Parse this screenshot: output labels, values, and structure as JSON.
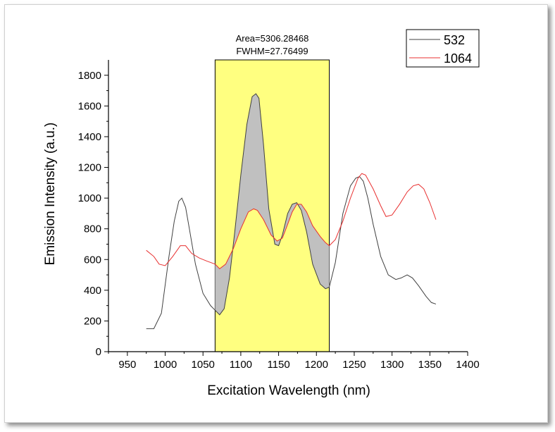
{
  "chart_data": {
    "type": "line",
    "xlabel": "Excitation Wavelength (nm)",
    "ylabel": "Emission Intensity (a.u.)",
    "xlim": [
      925,
      1400
    ],
    "ylim": [
      0,
      1900
    ],
    "xticks": [
      950,
      1000,
      1050,
      1100,
      1150,
      1200,
      1250,
      1300,
      1350,
      1400
    ],
    "yticks": [
      0,
      200,
      400,
      600,
      800,
      1000,
      1200,
      1400,
      1600,
      1800
    ],
    "grid": false,
    "legend_position": "top-right",
    "highlight": {
      "x_range": [
        1066,
        1217
      ],
      "color": "#ffff80",
      "annotation_lines": [
        "Area=5306.28468",
        "FWHM=27.76499"
      ]
    },
    "fill_between_color": "#c0c0c0",
    "series": [
      {
        "name": "532",
        "color": "#404040",
        "x": [
          975,
          985,
          995,
          1005,
          1012,
          1018,
          1022,
          1027,
          1032,
          1040,
          1050,
          1060,
          1066,
          1072,
          1078,
          1085,
          1092,
          1100,
          1108,
          1115,
          1120,
          1124,
          1130,
          1137,
          1145,
          1150,
          1155,
          1162,
          1168,
          1174,
          1180,
          1187,
          1195,
          1205,
          1212,
          1217,
          1225,
          1235,
          1245,
          1252,
          1257,
          1262,
          1268,
          1275,
          1285,
          1295,
          1305,
          1312,
          1320,
          1327,
          1335,
          1345,
          1352,
          1358
        ],
        "y": [
          150,
          150,
          250,
          620,
          850,
          980,
          1000,
          940,
          800,
          570,
          380,
          300,
          270,
          240,
          280,
          480,
          780,
          1150,
          1480,
          1660,
          1680,
          1650,
          1350,
          930,
          700,
          690,
          760,
          900,
          960,
          970,
          920,
          780,
          570,
          440,
          410,
          420,
          580,
          900,
          1080,
          1130,
          1140,
          1110,
          1000,
          830,
          620,
          500,
          470,
          480,
          500,
          480,
          430,
          360,
          320,
          310
        ]
      },
      {
        "name": "1064",
        "color": "#e83030",
        "x": [
          975,
          985,
          992,
          1000,
          1010,
          1020,
          1027,
          1035,
          1045,
          1055,
          1066,
          1072,
          1080,
          1090,
          1100,
          1110,
          1117,
          1122,
          1130,
          1140,
          1148,
          1155,
          1162,
          1168,
          1174,
          1180,
          1187,
          1195,
          1205,
          1212,
          1217,
          1225,
          1235,
          1245,
          1255,
          1260,
          1265,
          1275,
          1285,
          1292,
          1300,
          1310,
          1320,
          1328,
          1335,
          1342,
          1350,
          1358
        ],
        "y": [
          660,
          620,
          570,
          560,
          620,
          690,
          690,
          640,
          610,
          590,
          570,
          540,
          570,
          670,
          800,
          910,
          930,
          920,
          860,
          760,
          720,
          740,
          830,
          910,
          960,
          960,
          910,
          820,
          750,
          710,
          690,
          730,
          850,
          1000,
          1130,
          1160,
          1150,
          1060,
          950,
          880,
          890,
          960,
          1040,
          1080,
          1090,
          1060,
          970,
          860
        ]
      }
    ]
  }
}
